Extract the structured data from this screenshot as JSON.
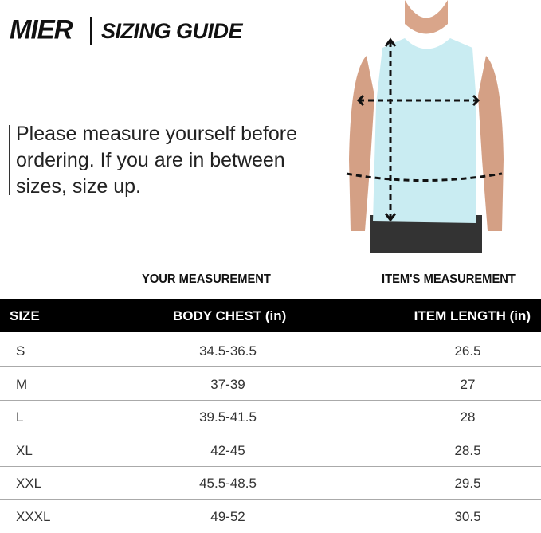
{
  "brand": "MIER",
  "title": "SIZING GUIDE",
  "note": "Please measure yourself before ordering. If you are in between sizes, size up.",
  "groups": {
    "your": "YOUR MEASUREMENT",
    "item": "ITEM'S MEASUREMENT"
  },
  "headers": [
    "SIZE",
    "BODY CHEST (in)",
    "ITEM LENGTH (in)"
  ],
  "rows": [
    [
      "S",
      "34.5-36.5",
      "26.5"
    ],
    [
      "M",
      "37-39",
      "27"
    ],
    [
      "L",
      "39.5-41.5",
      "28"
    ],
    [
      "XL",
      "42-45",
      "28.5"
    ],
    [
      "XXL",
      "45.5-48.5",
      "29.5"
    ],
    [
      "XXXL",
      "49-52",
      "30.5"
    ]
  ],
  "colors": {
    "header_bg": "#000000",
    "shirt": "#c9ecf2"
  }
}
